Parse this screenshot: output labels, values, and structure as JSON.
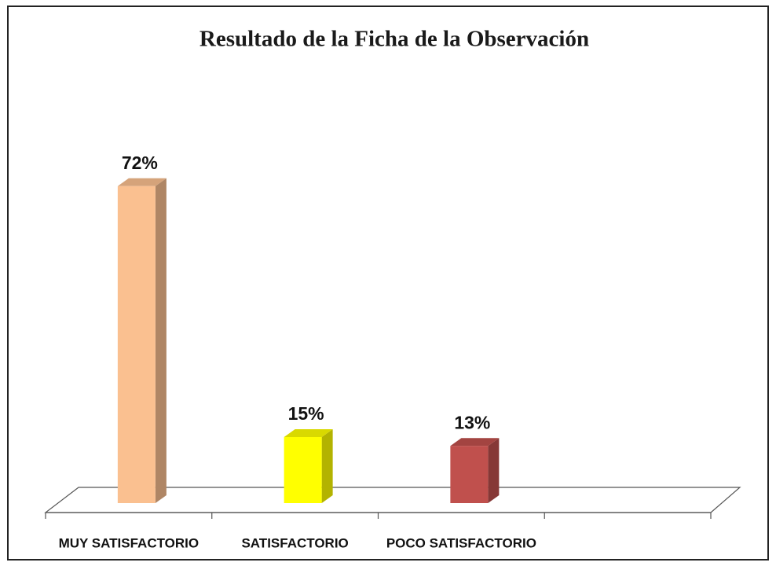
{
  "chart_data": {
    "type": "bar3d",
    "title": "Resultado de la Ficha de la Observación",
    "categories": [
      "MUY SATISFACTORIO",
      "SATISFACTORIO",
      "POCO SATISFACTORIO"
    ],
    "values": [
      72,
      15,
      13
    ],
    "value_labels": [
      "72%",
      "15%",
      "13%"
    ],
    "colors": [
      "#FAC090",
      "#FFFF00",
      "#C0504D"
    ]
  }
}
